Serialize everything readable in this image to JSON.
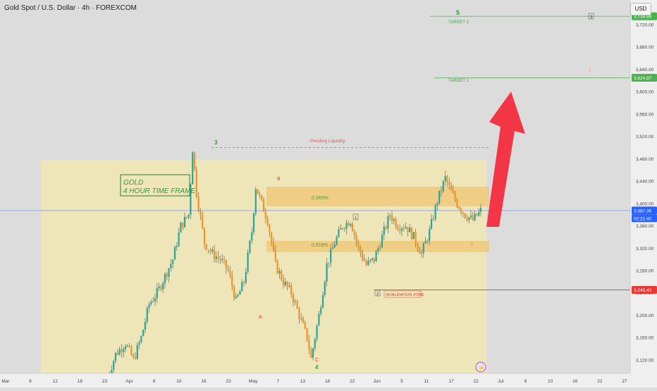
{
  "header": {
    "title": "Gold Spot / U.S. Dollar · 4h · FOREXCOM",
    "currency": "USD"
  },
  "labels": {
    "title_box_line1": "GOLD",
    "title_box_line2": "4 HOUR TIME FRAME",
    "pending_liquidity": "Pending Liquidity",
    "target1": "TARGET 1",
    "target2": "TARGET 2",
    "invalidation": "INVALIDATION ZONE",
    "fib_upper": "0.365%",
    "fib_lower": "0.618%",
    "wave_3": "3",
    "wave_4": "4",
    "wave_5": "5",
    "wave_A": "A",
    "wave_B": "B",
    "wave_C": "C",
    "wave_a": "A",
    "wave_c": "C",
    "box_1": "1",
    "box_2": "2",
    "box_3": "3",
    "small_i": "i",
    "small_ii": "ii",
    "small_iii": "iii",
    "lightning": "⚡"
  },
  "price_axis": {
    "ticks": [
      "3,720.00",
      "3,680.00",
      "3,640.00",
      "3,600.00",
      "3,560.00",
      "3,520.00",
      "3,480.00",
      "3,440.00",
      "3,400.00",
      "3,360.00",
      "3,320.00",
      "3,280.00",
      "3,240.00",
      "3,200.00",
      "3,160.00",
      "3,120.00"
    ],
    "badges": [
      {
        "text": "3,734.89",
        "color": "#4caf50"
      },
      {
        "text": "3,624.87",
        "color": "#4caf50"
      },
      {
        "text": "3,387.39",
        "color": "#2962ff"
      },
      {
        "text": "02:21:40",
        "color": "#2962ff"
      },
      {
        "text": "3,245.42",
        "color": "#e53935"
      }
    ]
  },
  "time_axis": {
    "ticks": [
      "Mar",
      "6",
      "12",
      "18",
      "23",
      "Apr",
      "6",
      "10",
      "16",
      "23",
      "May",
      "7",
      "13",
      "18",
      "22",
      "Jun",
      "5",
      "11",
      "17",
      "22",
      "Jul",
      "6",
      "10",
      "16",
      "22",
      "27"
    ]
  },
  "chart_data": {
    "type": "candlestick",
    "instrument": "Gold Spot / U.S. Dollar",
    "timeframe": "4h",
    "ylim": [
      3096,
      3764
    ],
    "levels": {
      "target_2": 3734.89,
      "target_1": 3624.87,
      "last_price": 3387.39,
      "invalidation": 3245.42,
      "pending_liquidity": 3500
    },
    "zones": [
      {
        "label": "0.365%",
        "top": 3430,
        "bottom": 3395
      },
      {
        "label": "0.618%",
        "top": 3333,
        "bottom": 3313
      }
    ],
    "background_box": {
      "top": 3478,
      "bottom": 3096
    },
    "price_path": [
      [
        0,
        3080
      ],
      [
        5,
        3130
      ],
      [
        10,
        3150
      ],
      [
        14,
        3120
      ],
      [
        18,
        3160
      ],
      [
        22,
        3220
      ],
      [
        26,
        3240
      ],
      [
        30,
        3270
      ],
      [
        34,
        3300
      ],
      [
        38,
        3360
      ],
      [
        42,
        3380
      ],
      [
        44,
        3498
      ],
      [
        46,
        3420
      ],
      [
        50,
        3330
      ],
      [
        54,
        3310
      ],
      [
        58,
        3300
      ],
      [
        62,
        3280
      ],
      [
        66,
        3225
      ],
      [
        70,
        3260
      ],
      [
        74,
        3350
      ],
      [
        76,
        3430
      ],
      [
        79,
        3400
      ],
      [
        82,
        3370
      ],
      [
        86,
        3290
      ],
      [
        90,
        3260
      ],
      [
        94,
        3240
      ],
      [
        98,
        3200
      ],
      [
        102,
        3160
      ],
      [
        104,
        3122
      ],
      [
        108,
        3200
      ],
      [
        112,
        3290
      ],
      [
        116,
        3330
      ],
      [
        120,
        3360
      ],
      [
        124,
        3370
      ],
      [
        128,
        3320
      ],
      [
        132,
        3290
      ],
      [
        136,
        3300
      ],
      [
        140,
        3340
      ],
      [
        144,
        3380
      ],
      [
        148,
        3360
      ],
      [
        152,
        3360
      ],
      [
        156,
        3340
      ],
      [
        160,
        3310
      ],
      [
        164,
        3350
      ],
      [
        168,
        3405
      ],
      [
        172,
        3445
      ],
      [
        175,
        3420
      ],
      [
        178,
        3400
      ],
      [
        182,
        3380
      ],
      [
        186,
        3370
      ],
      [
        190,
        3387
      ]
    ],
    "candle_colors": {
      "up": "#26a69a",
      "down": "#f7931a",
      "wick": "#555555"
    },
    "arrow": {
      "from": [
        3365
      ],
      "to": [
        3608
      ],
      "color": "#f23645"
    }
  }
}
